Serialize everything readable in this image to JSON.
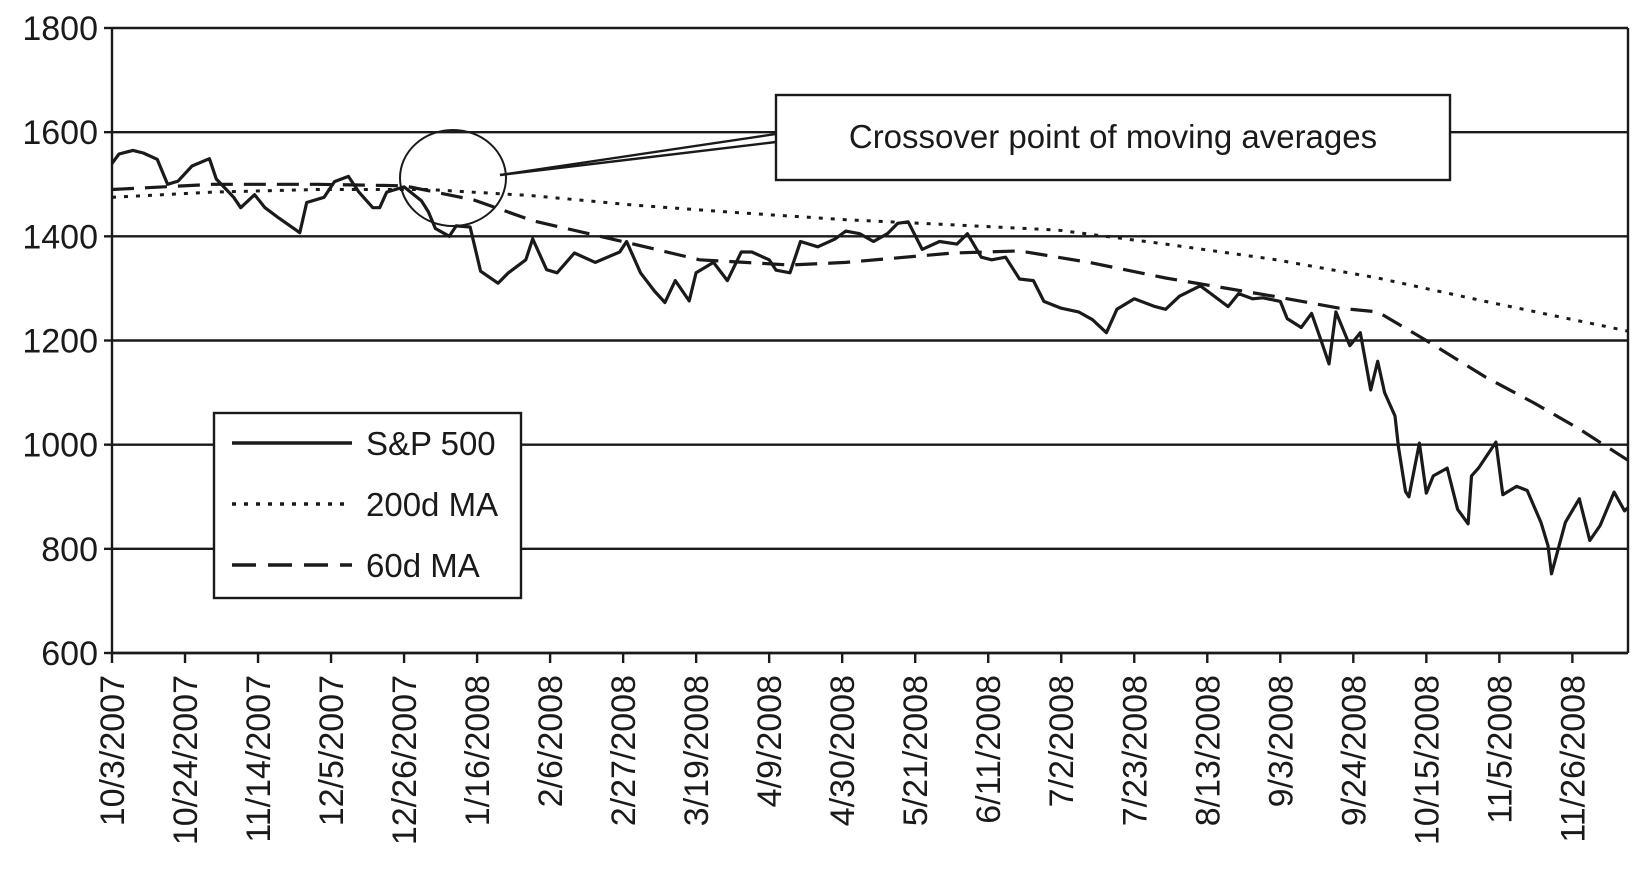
{
  "chart_data": {
    "type": "line",
    "title": "",
    "xlabel": "",
    "ylabel": "",
    "ylim": [
      600,
      1800
    ],
    "yticks": [
      600,
      800,
      1000,
      1200,
      1400,
      1600,
      1800
    ],
    "grid": "horizontal",
    "legend_position": "lower-left",
    "x_tick_labels": [
      "10/3/2007",
      "10/24/2007",
      "11/14/2007",
      "12/5/2007",
      "12/26/2007",
      "1/16/2008",
      "2/6/2008",
      "2/27/2008",
      "3/19/2008",
      "4/9/2008",
      "4/30/2008",
      "5/21/2008",
      "6/11/2008",
      "7/2/2008",
      "7/23/2008",
      "8/13/2008",
      "9/3/2008",
      "9/24/2008",
      "10/15/2008",
      "11/5/2008",
      "11/26/2008"
    ],
    "x_end_date": "12/12/2008",
    "annotation": {
      "text": "Crossover point of moving averages",
      "target_date": "1/4/2008",
      "target_value": 1495
    },
    "series": [
      {
        "name": "S&P 500",
        "style": "solid",
        "points": [
          [
            "10/3/2007",
            1540
          ],
          [
            "10/5/2007",
            1558
          ],
          [
            "10/9/2007",
            1565
          ],
          [
            "10/12/2007",
            1560
          ],
          [
            "10/16/2007",
            1548
          ],
          [
            "10/19/2007",
            1500
          ],
          [
            "10/22/2007",
            1506
          ],
          [
            "10/26/2007",
            1535
          ],
          [
            "10/31/2007",
            1549
          ],
          [
            "11/2/2007",
            1510
          ],
          [
            "11/7/2007",
            1475
          ],
          [
            "11/9/2007",
            1455
          ],
          [
            "11/13/2007",
            1480
          ],
          [
            "11/16/2007",
            1455
          ],
          [
            "11/20/2007",
            1435
          ],
          [
            "11/26/2007",
            1407
          ],
          [
            "11/28/2007",
            1465
          ],
          [
            "12/3/2007",
            1475
          ],
          [
            "12/6/2007",
            1505
          ],
          [
            "12/10/2007",
            1515
          ],
          [
            "12/13/2007",
            1485
          ],
          [
            "12/17/2007",
            1455
          ],
          [
            "12/19/2007",
            1455
          ],
          [
            "12/21/2007",
            1485
          ],
          [
            "12/26/2007",
            1495
          ],
          [
            "12/31/2007",
            1468
          ],
          [
            "1/2/2008",
            1447
          ],
          [
            "1/4/2008",
            1415
          ],
          [
            "1/8/2008",
            1400
          ],
          [
            "1/10/2008",
            1420
          ],
          [
            "1/14/2008",
            1418
          ],
          [
            "1/17/2008",
            1333
          ],
          [
            "1/22/2008",
            1310
          ],
          [
            "1/25/2008",
            1330
          ],
          [
            "1/30/2008",
            1355
          ],
          [
            "2/1/2008",
            1395
          ],
          [
            "2/5/2008",
            1336
          ],
          [
            "2/8/2008",
            1330
          ],
          [
            "2/13/2008",
            1368
          ],
          [
            "2/19/2008",
            1350
          ],
          [
            "2/26/2008",
            1370
          ],
          [
            "2/28/2008",
            1390
          ],
          [
            "3/3/2008",
            1330
          ],
          [
            "3/7/2008",
            1295
          ],
          [
            "3/10/2008",
            1273
          ],
          [
            "3/13/2008",
            1315
          ],
          [
            "3/17/2008",
            1276
          ],
          [
            "3/19/2008",
            1330
          ],
          [
            "3/24/2008",
            1350
          ],
          [
            "3/28/2008",
            1315
          ],
          [
            "4/1/2008",
            1370
          ],
          [
            "4/4/2008",
            1370
          ],
          [
            "4/9/2008",
            1355
          ],
          [
            "4/11/2008",
            1335
          ],
          [
            "4/15/2008",
            1330
          ],
          [
            "4/18/2008",
            1390
          ],
          [
            "4/23/2008",
            1380
          ],
          [
            "4/28/2008",
            1395
          ],
          [
            "5/1/2008",
            1410
          ],
          [
            "5/5/2008",
            1405
          ],
          [
            "5/9/2008",
            1390
          ],
          [
            "5/13/2008",
            1405
          ],
          [
            "5/16/2008",
            1425
          ],
          [
            "5/19/2008",
            1428
          ],
          [
            "5/23/2008",
            1375
          ],
          [
            "5/28/2008",
            1390
          ],
          [
            "6/2/2008",
            1385
          ],
          [
            "6/5/2008",
            1405
          ],
          [
            "6/9/2008",
            1360
          ],
          [
            "6/12/2008",
            1355
          ],
          [
            "6/16/2008",
            1360
          ],
          [
            "6/20/2008",
            1318
          ],
          [
            "6/24/2008",
            1315
          ],
          [
            "6/27/2008",
            1275
          ],
          [
            "7/2/2008",
            1262
          ],
          [
            "7/7/2008",
            1255
          ],
          [
            "7/11/2008",
            1240
          ],
          [
            "7/15/2008",
            1215
          ],
          [
            "7/18/2008",
            1260
          ],
          [
            "7/23/2008",
            1280
          ],
          [
            "7/29/2008",
            1265
          ],
          [
            "8/1/2008",
            1260
          ],
          [
            "8/5/2008",
            1285
          ],
          [
            "8/11/2008",
            1305
          ],
          [
            "8/14/2008",
            1290
          ],
          [
            "8/19/2008",
            1265
          ],
          [
            "8/22/2008",
            1290
          ],
          [
            "8/26/2008",
            1280
          ],
          [
            "8/29/2008",
            1282
          ],
          [
            "9/3/2008",
            1275
          ],
          [
            "9/5/2008",
            1242
          ],
          [
            "9/9/2008",
            1225
          ],
          [
            "9/12/2008",
            1252
          ],
          [
            "9/15/2008",
            1195
          ],
          [
            "9/17/2008",
            1155
          ],
          [
            "9/19/2008",
            1255
          ],
          [
            "9/23/2008",
            1190
          ],
          [
            "9/26/2008",
            1215
          ],
          [
            "9/29/2008",
            1105
          ],
          [
            "10/1/2008",
            1160
          ],
          [
            "10/3/2008",
            1100
          ],
          [
            "10/6/2008",
            1055
          ],
          [
            "10/7/2008",
            995
          ],
          [
            "10/9/2008",
            910
          ],
          [
            "10/10/2008",
            900
          ],
          [
            "10/13/2008",
            1003
          ],
          [
            "10/15/2008",
            907
          ],
          [
            "10/17/2008",
            940
          ],
          [
            "10/21/2008",
            955
          ],
          [
            "10/24/2008",
            876
          ],
          [
            "10/27/2008",
            848
          ],
          [
            "10/28/2008",
            940
          ],
          [
            "10/30/2008",
            955
          ],
          [
            "11/4/2008",
            1005
          ],
          [
            "11/6/2008",
            904
          ],
          [
            "11/10/2008",
            920
          ],
          [
            "11/13/2008",
            912
          ],
          [
            "11/17/2008",
            850
          ],
          [
            "11/19/2008",
            806
          ],
          [
            "11/20/2008",
            752
          ],
          [
            "11/24/2008",
            851
          ],
          [
            "11/28/2008",
            896
          ],
          [
            "12/1/2008",
            816
          ],
          [
            "12/4/2008",
            845
          ],
          [
            "12/8/2008",
            909
          ],
          [
            "12/11/2008",
            873
          ],
          [
            "12/12/2008",
            879
          ]
        ]
      },
      {
        "name": "200d MA",
        "style": "dotted",
        "points": [
          [
            "10/3/2007",
            1475
          ],
          [
            "11/1/2007",
            1485
          ],
          [
            "12/1/2007",
            1490
          ],
          [
            "1/2/2008",
            1490
          ],
          [
            "2/1/2008",
            1478
          ],
          [
            "3/1/2008",
            1460
          ],
          [
            "4/1/2008",
            1445
          ],
          [
            "5/1/2008",
            1432
          ],
          [
            "6/1/2008",
            1422
          ],
          [
            "7/1/2008",
            1412
          ],
          [
            "8/1/2008",
            1385
          ],
          [
            "9/1/2008",
            1356
          ],
          [
            "10/1/2008",
            1320
          ],
          [
            "11/1/2008",
            1275
          ],
          [
            "12/12/2008",
            1218
          ]
        ]
      },
      {
        "name": "60d MA",
        "style": "dashed",
        "points": [
          [
            "10/3/2007",
            1490
          ],
          [
            "11/1/2007",
            1500
          ],
          [
            "12/1/2007",
            1500
          ],
          [
            "12/26/2007",
            1497
          ],
          [
            "1/15/2008",
            1470
          ],
          [
            "2/1/2008",
            1430
          ],
          [
            "3/1/2008",
            1385
          ],
          [
            "3/20/2008",
            1355
          ],
          [
            "4/15/2008",
            1345
          ],
          [
            "5/1/2008",
            1350
          ],
          [
            "6/1/2008",
            1368
          ],
          [
            "6/20/2008",
            1372
          ],
          [
            "7/10/2008",
            1350
          ],
          [
            "8/1/2008",
            1320
          ],
          [
            "9/1/2008",
            1285
          ],
          [
            "9/20/2008",
            1262
          ],
          [
            "10/1/2008",
            1255
          ],
          [
            "10/15/2008",
            1200
          ],
          [
            "11/1/2008",
            1130
          ],
          [
            "11/15/2008",
            1080
          ],
          [
            "11/28/2008",
            1030
          ],
          [
            "12/12/2008",
            970
          ]
        ]
      }
    ]
  }
}
